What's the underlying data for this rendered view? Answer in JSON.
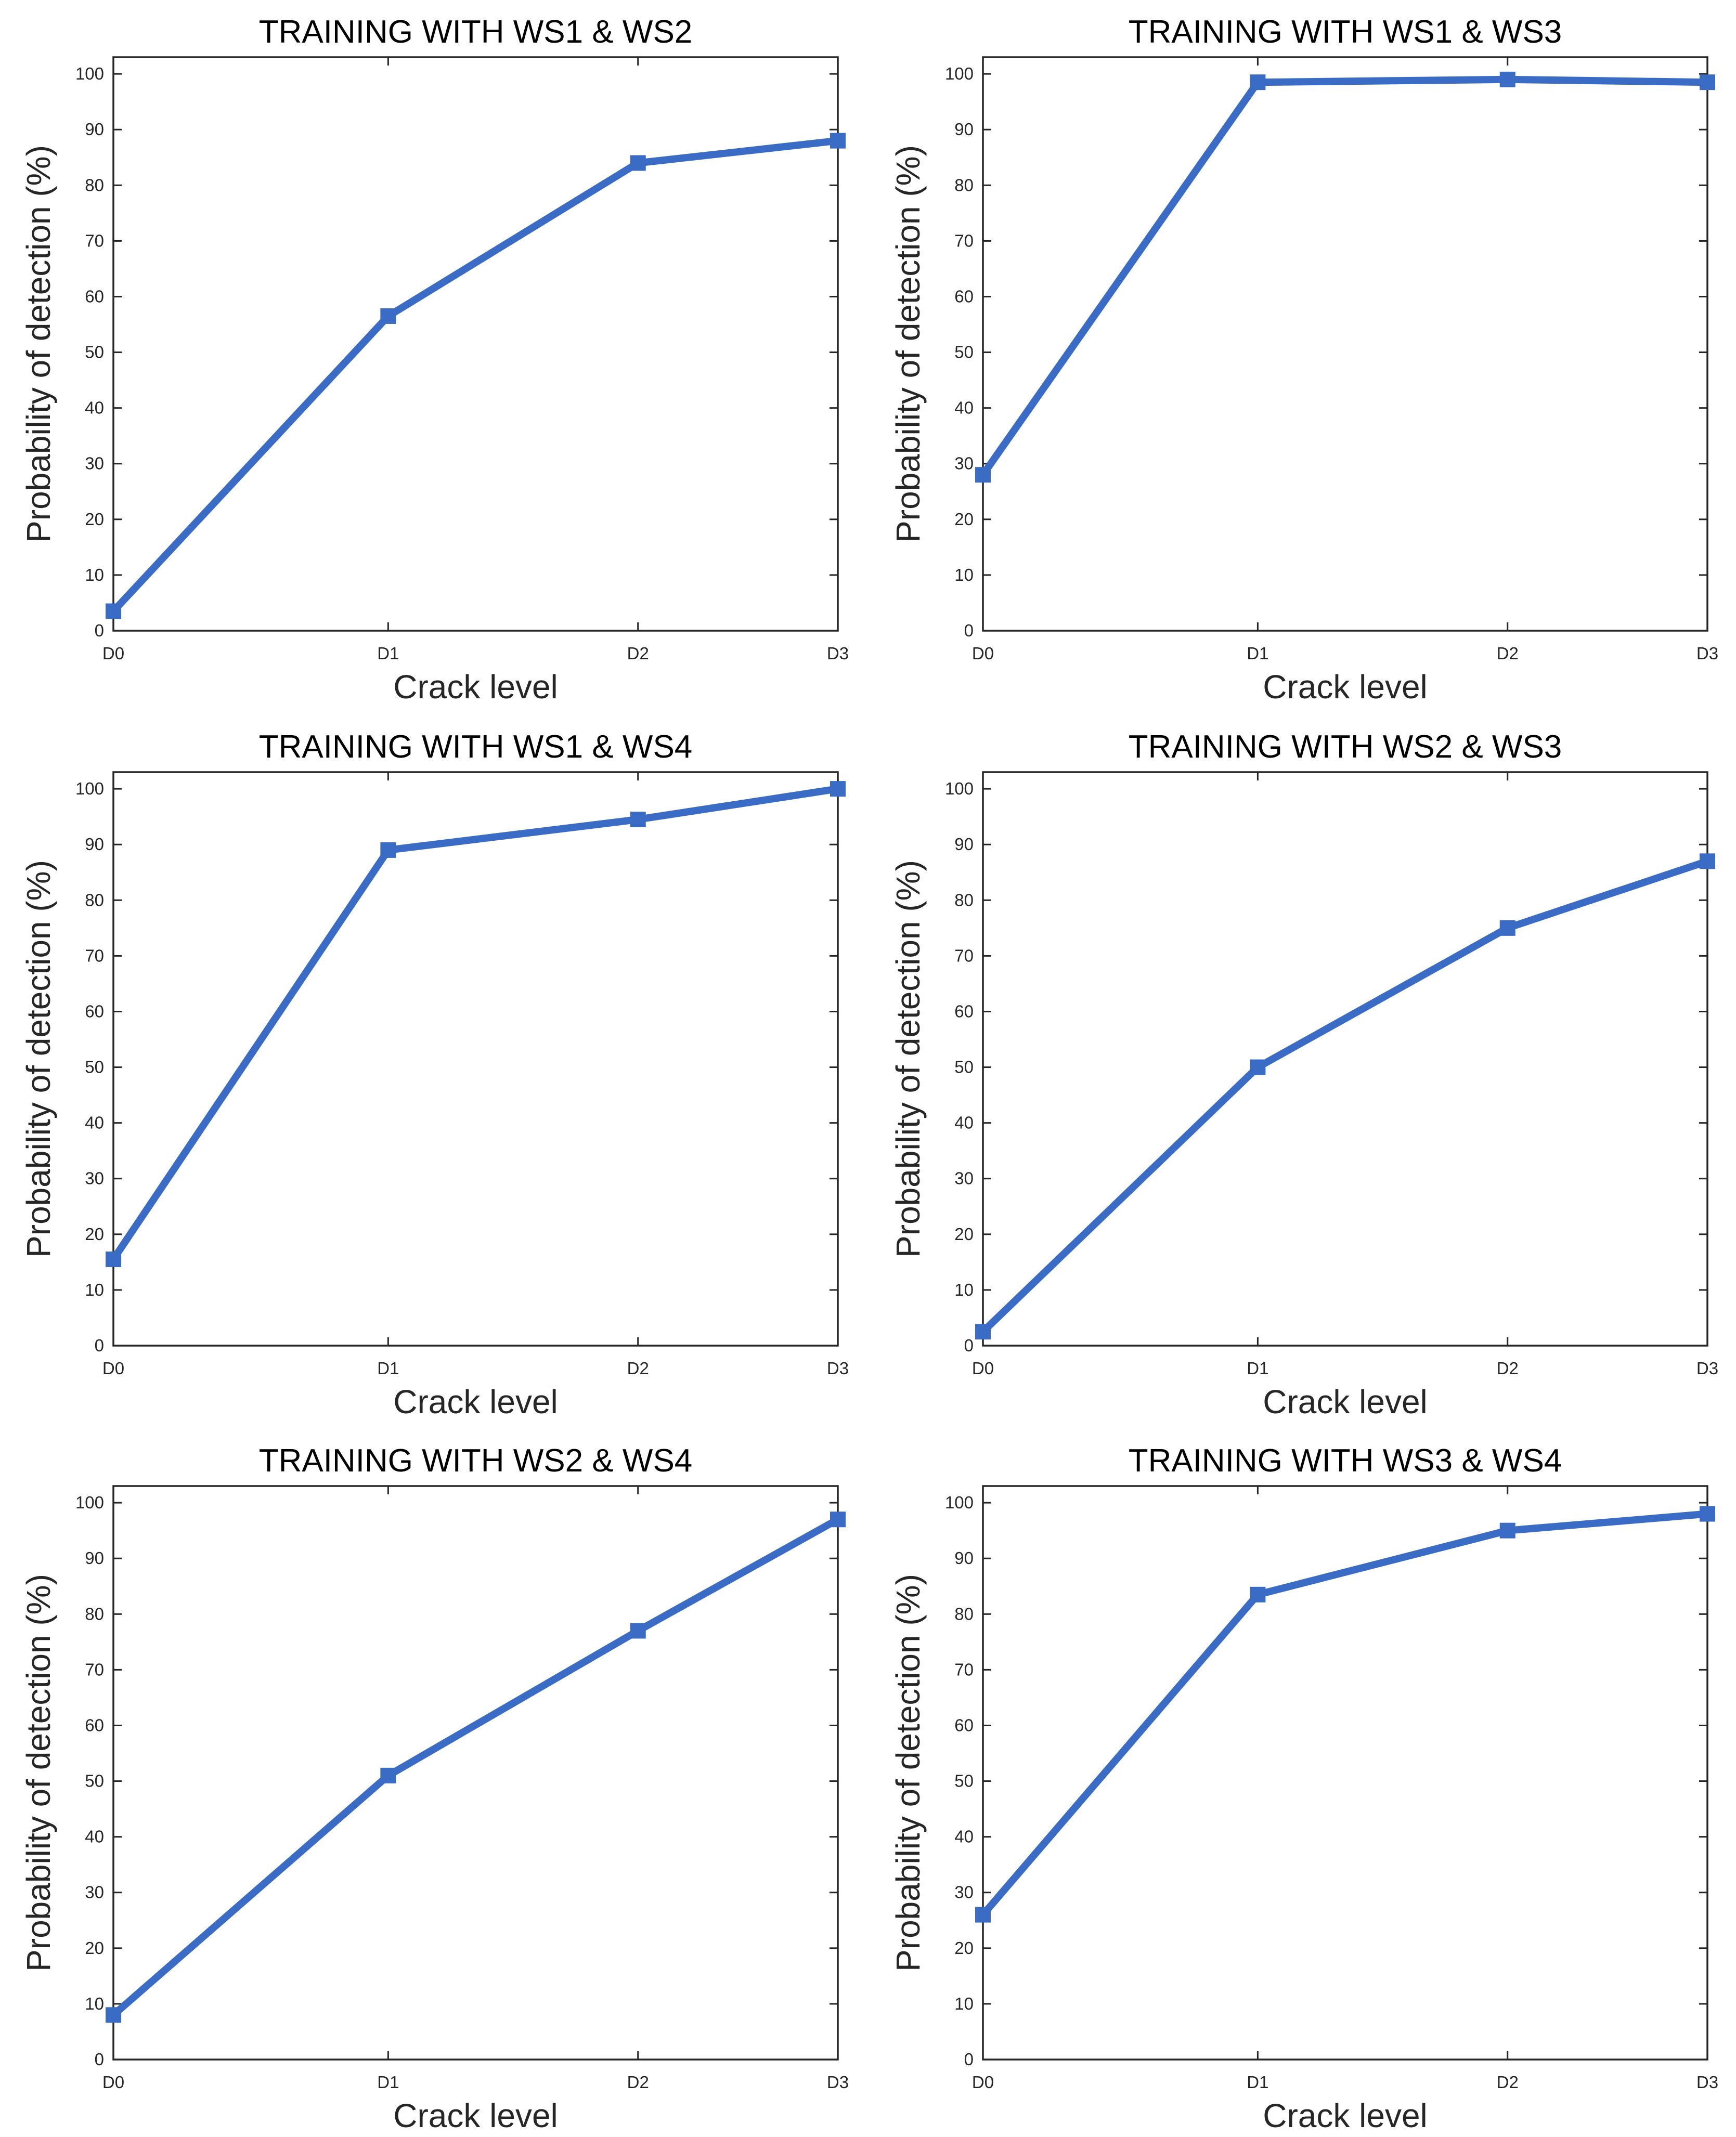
{
  "colors": {
    "series": "#3a6cc6",
    "axis": "#262626",
    "background": "#ffffff"
  },
  "chart_data": [
    {
      "type": "line",
      "title": "TRAINING WITH WS1 & WS2",
      "xlabel": "Crack level",
      "ylabel": "Probability of detection (%)",
      "categories": [
        "D0",
        "D1",
        "D2",
        "D3"
      ],
      "x": [
        0,
        1.1,
        2.1,
        2.9
      ],
      "values": [
        3.5,
        56.5,
        84,
        88
      ],
      "xlim": [
        0,
        2.9
      ],
      "ylim": [
        0,
        103
      ],
      "yticks": [
        0,
        10,
        20,
        30,
        40,
        50,
        60,
        70,
        80,
        90,
        100
      ],
      "marker": "square",
      "grid": false,
      "legend": "none"
    },
    {
      "type": "line",
      "title": "TRAINING WITH WS1 & WS3",
      "xlabel": "Crack level",
      "ylabel": "Probability of detection (%)",
      "categories": [
        "D0",
        "D1",
        "D2",
        "D3"
      ],
      "x": [
        0,
        1.1,
        2.1,
        2.9
      ],
      "values": [
        28,
        98.5,
        99,
        98.5
      ],
      "xlim": [
        0,
        2.9
      ],
      "ylim": [
        0,
        103
      ],
      "yticks": [
        0,
        10,
        20,
        30,
        40,
        50,
        60,
        70,
        80,
        90,
        100
      ],
      "marker": "square",
      "grid": false,
      "legend": "none"
    },
    {
      "type": "line",
      "title": "TRAINING WITH WS1 & WS4",
      "xlabel": "Crack level",
      "ylabel": "Probability of detection (%)",
      "categories": [
        "D0",
        "D1",
        "D2",
        "D3"
      ],
      "x": [
        0,
        1.1,
        2.1,
        2.9
      ],
      "values": [
        15.5,
        89,
        94.5,
        100
      ],
      "xlim": [
        0,
        2.9
      ],
      "ylim": [
        0,
        103
      ],
      "yticks": [
        0,
        10,
        20,
        30,
        40,
        50,
        60,
        70,
        80,
        90,
        100
      ],
      "marker": "square",
      "grid": false,
      "legend": "none"
    },
    {
      "type": "line",
      "title": "TRAINING WITH WS2 & WS3",
      "xlabel": "Crack level",
      "ylabel": "Probability of detection (%)",
      "categories": [
        "D0",
        "D1",
        "D2",
        "D3"
      ],
      "x": [
        0,
        1.1,
        2.1,
        2.9
      ],
      "values": [
        2.5,
        50,
        75,
        87
      ],
      "xlim": [
        0,
        2.9
      ],
      "ylim": [
        0,
        103
      ],
      "yticks": [
        0,
        10,
        20,
        30,
        40,
        50,
        60,
        70,
        80,
        90,
        100
      ],
      "marker": "square",
      "grid": false,
      "legend": "none"
    },
    {
      "type": "line",
      "title": "TRAINING WITH WS2 & WS4",
      "xlabel": "Crack level",
      "ylabel": "Probability of detection (%)",
      "categories": [
        "D0",
        "D1",
        "D2",
        "D3"
      ],
      "x": [
        0,
        1.1,
        2.1,
        2.9
      ],
      "values": [
        8,
        51,
        77,
        97
      ],
      "xlim": [
        0,
        2.9
      ],
      "ylim": [
        0,
        103
      ],
      "yticks": [
        0,
        10,
        20,
        30,
        40,
        50,
        60,
        70,
        80,
        90,
        100
      ],
      "marker": "square",
      "grid": false,
      "legend": "none"
    },
    {
      "type": "line",
      "title": "TRAINING WITH WS3 & WS4",
      "xlabel": "Crack level",
      "ylabel": "Probability of detection (%)",
      "categories": [
        "D0",
        "D1",
        "D2",
        "D3"
      ],
      "x": [
        0,
        1.1,
        2.1,
        2.9
      ],
      "values": [
        26,
        83.5,
        95,
        98
      ],
      "xlim": [
        0,
        2.9
      ],
      "ylim": [
        0,
        103
      ],
      "yticks": [
        0,
        10,
        20,
        30,
        40,
        50,
        60,
        70,
        80,
        90,
        100
      ],
      "marker": "square",
      "grid": false,
      "legend": "none"
    }
  ]
}
